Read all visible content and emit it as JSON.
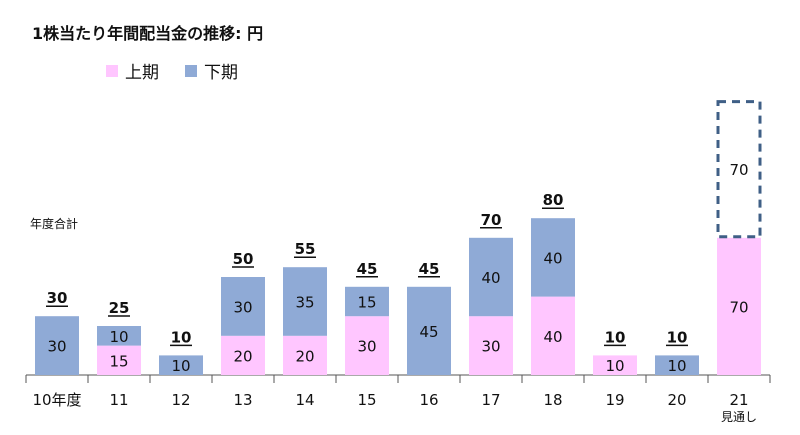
{
  "chart_data": {
    "type": "bar",
    "stacked": true,
    "title": "1株当たり年間配当金の推移: 円",
    "total_label": "年度合計",
    "categories": [
      "10年度",
      "11",
      "12",
      "13",
      "14",
      "15",
      "16",
      "17",
      "18",
      "19",
      "20",
      "21"
    ],
    "category_sublabels": [
      "",
      "",
      "",
      "",
      "",
      "",
      "",
      "",
      "",
      "",
      "",
      "見通し"
    ],
    "series": [
      {
        "name": "上期",
        "color": "#ffc6ff",
        "values": [
          0,
          15,
          0,
          20,
          20,
          30,
          0,
          30,
          40,
          10,
          0,
          70
        ]
      },
      {
        "name": "下期",
        "color": "#8faad6",
        "values": [
          30,
          10,
          10,
          30,
          35,
          15,
          45,
          40,
          40,
          0,
          10,
          70
        ]
      }
    ],
    "totals": [
      30,
      25,
      10,
      50,
      55,
      45,
      45,
      70,
      80,
      10,
      10,
      null
    ],
    "forecast": {
      "category_index": 11,
      "series": "下期",
      "style": "dashed-outline"
    },
    "ylim": [
      0,
      140
    ],
    "grid": false,
    "legend_position": "top-left"
  }
}
